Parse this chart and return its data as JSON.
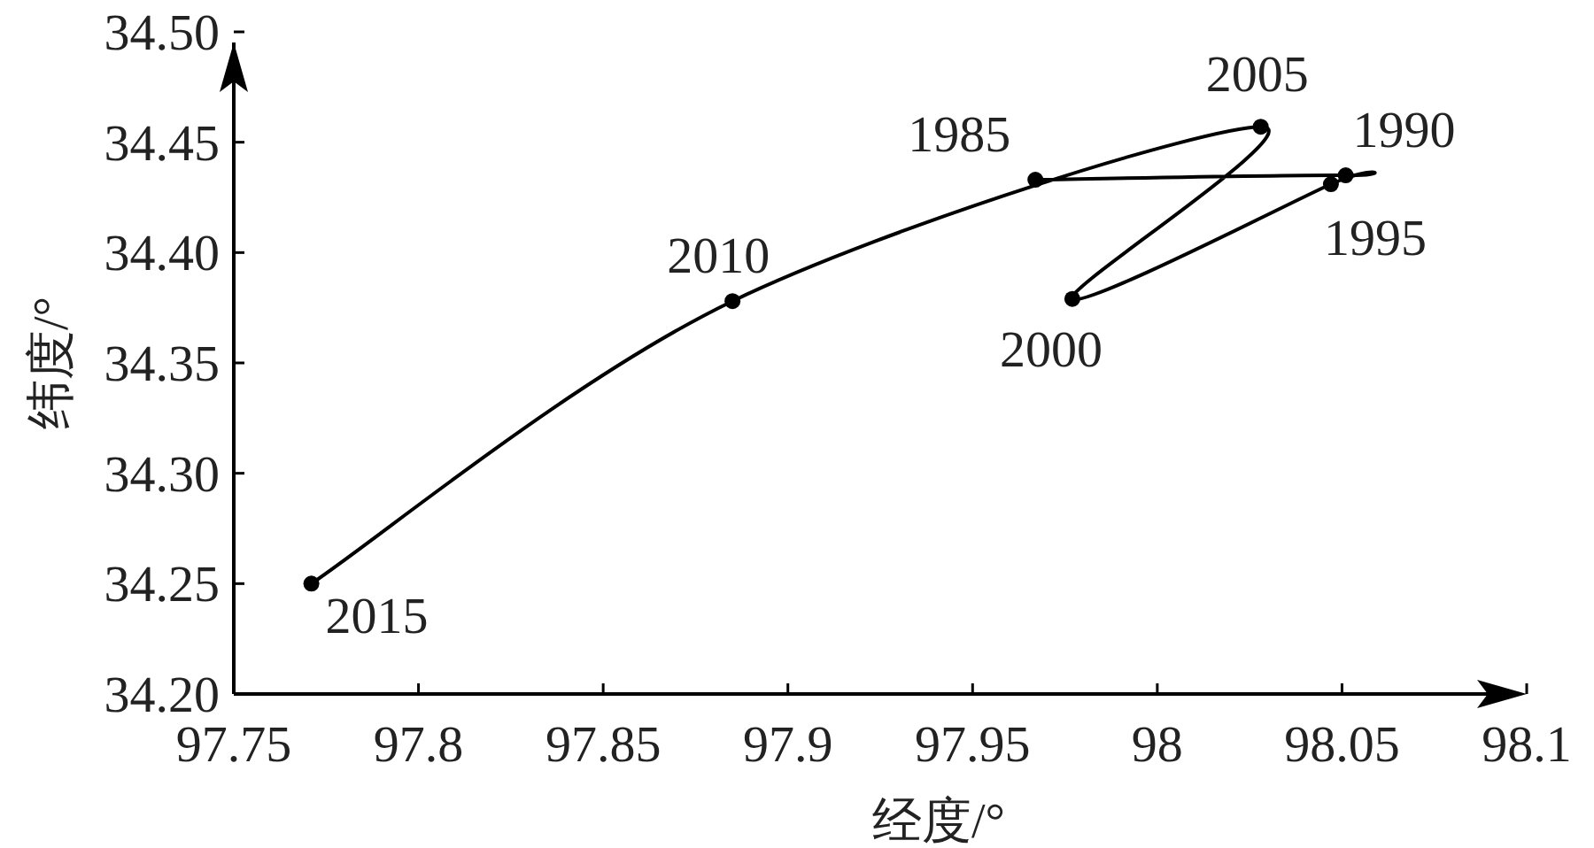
{
  "chart_data": {
    "type": "line",
    "xlabel": "经度/°",
    "ylabel": "纬度/°",
    "x": [
      97.967,
      98.051,
      98.047,
      97.977,
      98.028,
      97.885,
      97.771
    ],
    "values": [
      34.433,
      34.435,
      34.431,
      34.379,
      34.457,
      34.378,
      34.25
    ],
    "color": "#000000",
    "marker": "circle",
    "line_style": "solid",
    "grid": false,
    "xlim": [
      97.75,
      98.1
    ],
    "ylim": [
      34.2,
      34.5
    ],
    "xticks": [
      97.75,
      97.8,
      97.85,
      97.9,
      97.95,
      98,
      98.05,
      98.1
    ],
    "yticks": [
      {
        "value": 34.2,
        "label": "34.20"
      },
      {
        "value": 34.25,
        "label": "34.25"
      },
      {
        "value": 34.3,
        "label": "34.30"
      },
      {
        "value": 34.35,
        "label": "34.35"
      },
      {
        "value": 34.4,
        "label": "34.40"
      },
      {
        "value": 34.45,
        "label": "34.45"
      },
      {
        "value": 34.5,
        "label": "34.50"
      }
    ],
    "annotations": [
      {
        "text": "1985",
        "x": 97.967,
        "y": 34.433
      },
      {
        "text": "1990",
        "x": 98.051,
        "y": 34.435
      },
      {
        "text": "1995",
        "x": 98.047,
        "y": 34.431
      },
      {
        "text": "2000",
        "x": 97.977,
        "y": 34.379
      },
      {
        "text": "2005",
        "x": 98.028,
        "y": 34.457
      },
      {
        "text": "2010",
        "x": 97.885,
        "y": 34.378
      },
      {
        "text": "2015",
        "x": 97.771,
        "y": 34.25
      }
    ]
  }
}
